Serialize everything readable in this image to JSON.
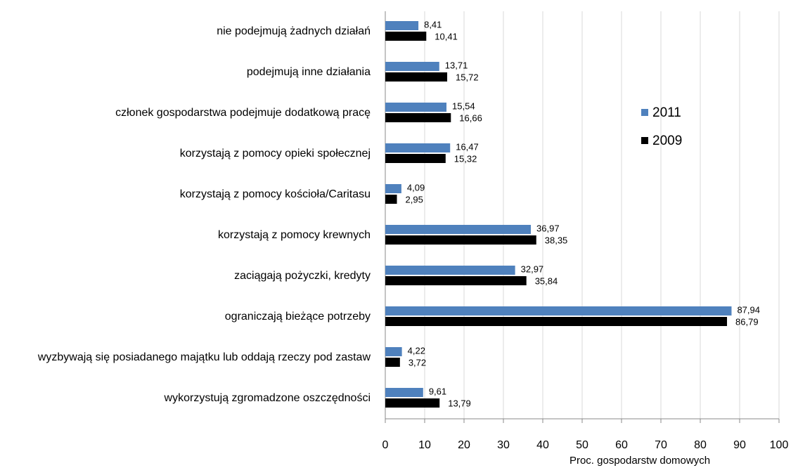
{
  "chart_data": {
    "type": "barh",
    "xlabel": "Proc. gospodarstw domowych",
    "categories": [
      "nie podejmują żadnych działań",
      "podejmują inne działania",
      "członek gospodarstwa podejmuje dodatkową pracę",
      "korzystają z pomocy opieki społecznej",
      "korzystają z pomocy kościoła/Caritasu",
      "korzystają z pomocy krewnych",
      "zaciągają pożyczki, kredyty",
      "ograniczają bieżące potrzeby",
      "wyzbywają się posiadanego majątku lub oddają rzeczy pod zastaw",
      "wykorzystują zgromadzone oszczędności"
    ],
    "series": [
      {
        "name": "2011",
        "color": "#4f81bd",
        "values": [
          8.41,
          13.71,
          15.54,
          16.47,
          4.09,
          36.97,
          32.97,
          87.94,
          4.22,
          9.61
        ],
        "value_labels": [
          "8,41",
          "13,71",
          "15,54",
          "16,47",
          "4,09",
          "36,97",
          "32,97",
          "87,94",
          "4,22",
          "9,61"
        ]
      },
      {
        "name": "2009",
        "color": "#000000",
        "values": [
          10.41,
          15.72,
          16.66,
          15.32,
          2.95,
          38.35,
          35.84,
          86.79,
          3.72,
          13.79
        ],
        "value_labels": [
          "10,41",
          "15,72",
          "16,66",
          "15,32",
          "2,95",
          "38,35",
          "35,84",
          "86,79",
          "3,72",
          "13,79"
        ]
      }
    ],
    "xlim": [
      0,
      100
    ],
    "xticks": [
      0,
      10,
      20,
      30,
      40,
      50,
      60,
      70,
      80,
      90,
      100
    ],
    "grid": true,
    "legend": "right"
  }
}
